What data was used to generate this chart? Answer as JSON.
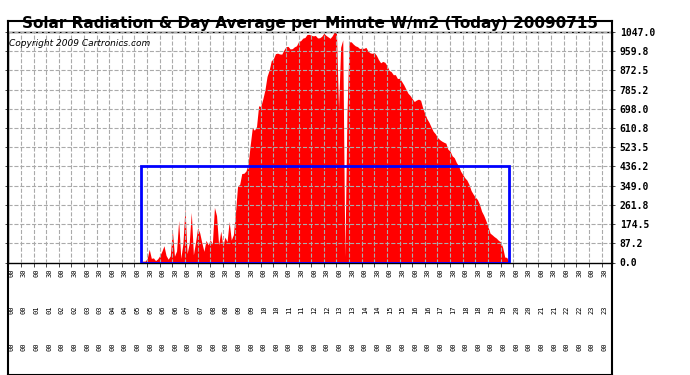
{
  "title": "Solar Radiation & Day Average per Minute W/m2 (Today) 20090715",
  "copyright": "Copyright 2009 Cartronics.com",
  "ymax": 1047.0,
  "yticks": [
    0.0,
    87.2,
    174.5,
    261.8,
    349.0,
    436.2,
    523.5,
    610.8,
    698.0,
    785.2,
    872.5,
    959.8,
    1047.0
  ],
  "bg_color": "#ffffff",
  "fill_color": "#ff0000",
  "avg_box_color": "#0000ff",
  "avg_value": 436.2,
  "sunrise_idx": 63,
  "sunset_idx": 238,
  "title_fontsize": 11,
  "copyright_fontsize": 6.5,
  "n_points": 288
}
